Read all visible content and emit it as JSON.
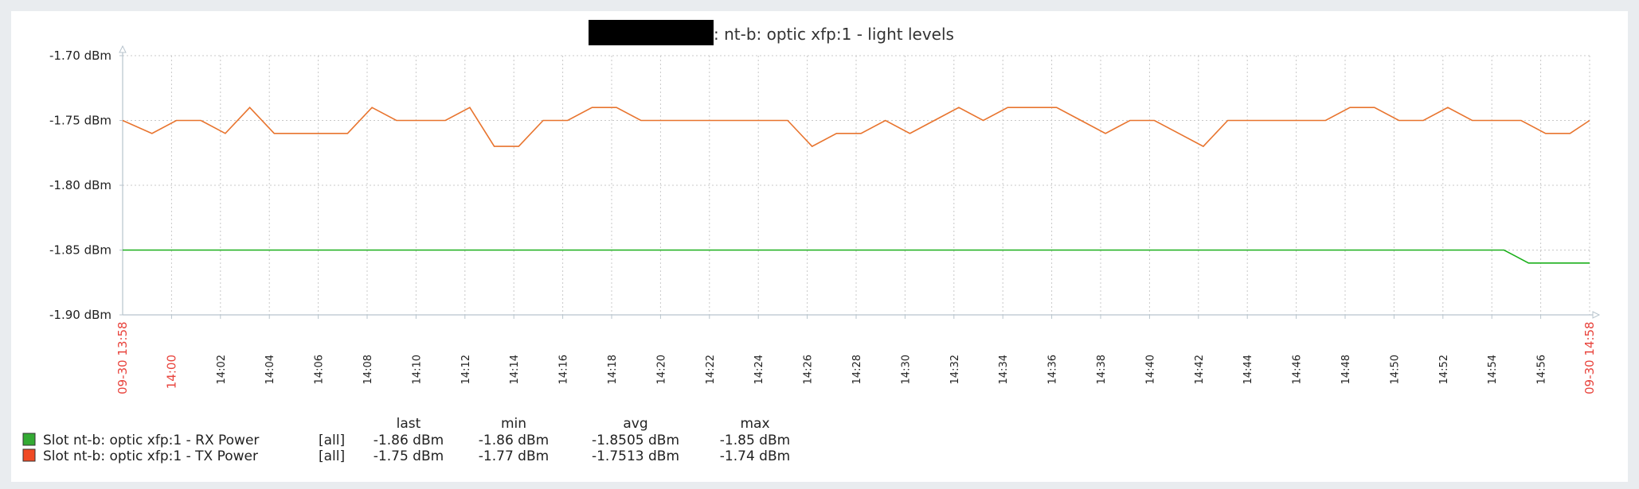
{
  "chart_data": {
    "type": "line",
    "title": ": nt-b: optic xfp:1 - light levels",
    "ylim": [
      -1.9,
      -1.7
    ],
    "y_ticks": [
      "-1.70 dBm",
      "-1.75 dBm",
      "-1.80 dBm",
      "-1.85 dBm",
      "-1.90 dBm"
    ],
    "y_tick_values": [
      -1.7,
      -1.75,
      -1.8,
      -1.85,
      -1.9
    ],
    "x_range_minutes": [
      0,
      60
    ],
    "x_start_label": "09-30 13:58",
    "x_end_label": "09-30 14:58",
    "x_ticks": [
      {
        "label": "14:00",
        "min": 2,
        "highlight": true
      },
      {
        "label": "14:02",
        "min": 4
      },
      {
        "label": "14:04",
        "min": 6
      },
      {
        "label": "14:06",
        "min": 8
      },
      {
        "label": "14:08",
        "min": 10
      },
      {
        "label": "14:10",
        "min": 12
      },
      {
        "label": "14:12",
        "min": 14
      },
      {
        "label": "14:14",
        "min": 16
      },
      {
        "label": "14:16",
        "min": 18
      },
      {
        "label": "14:18",
        "min": 20
      },
      {
        "label": "14:20",
        "min": 22
      },
      {
        "label": "14:22",
        "min": 24
      },
      {
        "label": "14:24",
        "min": 26
      },
      {
        "label": "14:26",
        "min": 28
      },
      {
        "label": "14:28",
        "min": 30
      },
      {
        "label": "14:30",
        "min": 32
      },
      {
        "label": "14:32",
        "min": 34
      },
      {
        "label": "14:34",
        "min": 36
      },
      {
        "label": "14:36",
        "min": 38
      },
      {
        "label": "14:38",
        "min": 40
      },
      {
        "label": "14:40",
        "min": 42
      },
      {
        "label": "14:42",
        "min": 44
      },
      {
        "label": "14:44",
        "min": 46
      },
      {
        "label": "14:46",
        "min": 48
      },
      {
        "label": "14:48",
        "min": 50
      },
      {
        "label": "14:50",
        "min": 52
      },
      {
        "label": "14:52",
        "min": 54
      },
      {
        "label": "14:54",
        "min": 56
      },
      {
        "label": "14:56",
        "min": 58
      }
    ],
    "grid": true,
    "series": [
      {
        "name": "Slot nt-b: optic xfp:1 - RX Power",
        "color": "#1aaf1a",
        "legend_color": "#33aa33",
        "points": [
          [
            0,
            -1.85
          ],
          [
            56.5,
            -1.85
          ],
          [
            57.5,
            -1.86
          ],
          [
            60,
            -1.86
          ]
        ]
      },
      {
        "name": "Slot nt-b: optic xfp:1 - TX Power",
        "color": "#e8742e",
        "legend_color": "#f04a24",
        "points": [
          [
            0,
            -1.75
          ],
          [
            1.2,
            -1.76
          ],
          [
            2.2,
            -1.75
          ],
          [
            3.2,
            -1.75
          ],
          [
            4.2,
            -1.76
          ],
          [
            5.2,
            -1.74
          ],
          [
            6.2,
            -1.76
          ],
          [
            7.2,
            -1.76
          ],
          [
            8.2,
            -1.76
          ],
          [
            9.2,
            -1.76
          ],
          [
            10.2,
            -1.74
          ],
          [
            11.2,
            -1.75
          ],
          [
            12.2,
            -1.75
          ],
          [
            13.2,
            -1.75
          ],
          [
            14.2,
            -1.74
          ],
          [
            15.2,
            -1.77
          ],
          [
            16.2,
            -1.77
          ],
          [
            17.2,
            -1.75
          ],
          [
            18.2,
            -1.75
          ],
          [
            19.2,
            -1.74
          ],
          [
            20.2,
            -1.74
          ],
          [
            21.2,
            -1.75
          ],
          [
            22.2,
            -1.75
          ],
          [
            23.2,
            -1.75
          ],
          [
            24.2,
            -1.75
          ],
          [
            25.2,
            -1.75
          ],
          [
            26.2,
            -1.75
          ],
          [
            27.2,
            -1.75
          ],
          [
            28.2,
            -1.77
          ],
          [
            29.2,
            -1.76
          ],
          [
            30.2,
            -1.76
          ],
          [
            31.2,
            -1.75
          ],
          [
            32.2,
            -1.76
          ],
          [
            33.2,
            -1.75
          ],
          [
            34.2,
            -1.74
          ],
          [
            35.2,
            -1.75
          ],
          [
            36.2,
            -1.74
          ],
          [
            37.2,
            -1.74
          ],
          [
            38.2,
            -1.74
          ],
          [
            39.2,
            -1.75
          ],
          [
            40.2,
            -1.76
          ],
          [
            41.2,
            -1.75
          ],
          [
            42.2,
            -1.75
          ],
          [
            43.2,
            -1.76
          ],
          [
            44.2,
            -1.77
          ],
          [
            45.2,
            -1.75
          ],
          [
            46.2,
            -1.75
          ],
          [
            47.2,
            -1.75
          ],
          [
            48.2,
            -1.75
          ],
          [
            49.2,
            -1.75
          ],
          [
            50.2,
            -1.74
          ],
          [
            51.2,
            -1.74
          ],
          [
            52.2,
            -1.75
          ],
          [
            53.2,
            -1.75
          ],
          [
            54.2,
            -1.74
          ],
          [
            55.2,
            -1.75
          ],
          [
            56.2,
            -1.75
          ],
          [
            57.2,
            -1.75
          ],
          [
            58.2,
            -1.76
          ],
          [
            59.2,
            -1.76
          ],
          [
            60,
            -1.75
          ]
        ]
      }
    ]
  },
  "legend": {
    "headers": {
      "last": "last",
      "min": "min",
      "avg": "avg",
      "max": "max"
    },
    "rows": [
      {
        "name": "Slot nt-b: optic xfp:1 - RX Power",
        "func": "[all]",
        "last": "-1.86 dBm",
        "min": "-1.86 dBm",
        "avg": "-1.8505 dBm",
        "max": "-1.85 dBm",
        "color": "#33aa33"
      },
      {
        "name": "Slot nt-b: optic xfp:1 - TX Power",
        "func": "[all]",
        "last": "-1.75 dBm",
        "min": "-1.77 dBm",
        "avg": "-1.7513 dBm",
        "max": "-1.74 dBm",
        "color": "#f04a24"
      }
    ]
  },
  "colors": {
    "axis": "#b8c4cd",
    "grid": "#c8c8c8",
    "text": "#222222",
    "highlight_text": "#e8433c"
  }
}
